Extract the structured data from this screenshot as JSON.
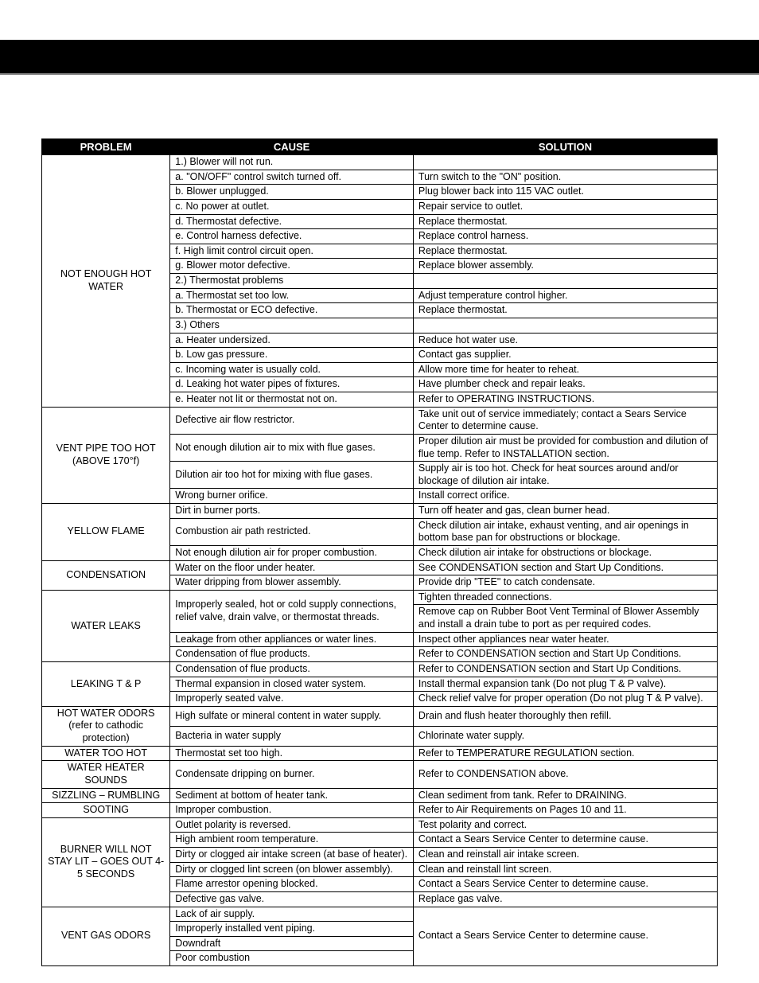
{
  "headers": {
    "problem": "PROBLEM",
    "cause": "CAUSE",
    "solution": "SOLUTION"
  },
  "p1": "NOT ENOUGH HOT WATER",
  "p1_c1": "1.) Blower will not run.",
  "p1_s1": "",
  "p1_c2": "a. \"ON/OFF\" control switch turned off.",
  "p1_s2": "Turn switch to the \"ON\" position.",
  "p1_c3": "b. Blower unplugged.",
  "p1_s3": "Plug blower back into 115 VAC outlet.",
  "p1_c4": "c. No power at outlet.",
  "p1_s4": "Repair service to outlet.",
  "p1_c5": "d. Thermostat defective.",
  "p1_s5": "Replace thermostat.",
  "p1_c6": "e. Control harness defective.",
  "p1_s6": "Replace control harness.",
  "p1_c7": "f. High limit control circuit open.",
  "p1_s7": "Replace thermostat.",
  "p1_c8": "g. Blower motor defective.",
  "p1_s8": "Replace blower assembly.",
  "p1_c9": "2.) Thermostat problems",
  "p1_s9": "",
  "p1_c10": "a. Thermostat set too low.",
  "p1_s10": "Adjust temperature control higher.",
  "p1_c11": "b. Thermostat or ECO defective.",
  "p1_s11": "Replace thermostat.",
  "p1_c12": "3.) Others",
  "p1_s12": "",
  "p1_c13": "a. Heater undersized.",
  "p1_s13": "Reduce hot water use.",
  "p1_c14": "b. Low gas pressure.",
  "p1_s14": "Contact gas supplier.",
  "p1_c15": "c. Incoming water is usually cold.",
  "p1_s15": "Allow more time for heater to reheat.",
  "p1_c16": "d. Leaking hot water pipes of fixtures.",
  "p1_s16": "Have plumber check and repair leaks.",
  "p1_c17": "e. Heater not lit or thermostat not on.",
  "p1_s17": "Refer to OPERATING INSTRUCTIONS.",
  "p2": "VENT PIPE TOO HOT (ABOVE 170°f)",
  "p2_c1": "Defective air flow restrictor.",
  "p2_s1": "Take unit out of service immediately; contact a Sears Service Center to determine cause.",
  "p2_c2": "Not enough dilution air to mix with flue gases.",
  "p2_s2": "Proper dilution air must be provided for combustion and dilution of flue temp. Refer to INSTALLATION section.",
  "p2_c3": "Dilution air too hot for mixing with flue gases.",
  "p2_s3": "Supply air is too hot. Check for heat sources around and/or blockage of dilution air intake.",
  "p2_c4": "Wrong burner orifice.",
  "p2_s4": "Install correct orifice.",
  "p3": "YELLOW FLAME",
  "p3_c1": "Dirt in burner ports.",
  "p3_s1": "Turn off heater and gas, clean burner head.",
  "p3_c2": "Combustion air path restricted.",
  "p3_s2": "Check dilution air intake, exhaust venting, and air openings in bottom base pan for obstructions or blockage.",
  "p3_c3": "Not enough dilution air for proper combustion.",
  "p3_s3": "Check dilution air intake for obstructions or blockage.",
  "p4": "CONDENSATION",
  "p4_c1": "Water on the floor under heater.",
  "p4_s1": "See CONDENSATION section and Start Up Conditions.",
  "p4_c2": "Water dripping from blower assembly.",
  "p4_s2": "Provide drip \"TEE\" to catch condensate.",
  "p5": "WATER LEAKS",
  "p5_c1": "Improperly sealed, hot or cold supply connections, relief valve, drain valve, or thermostat threads.",
  "p5_s1a": "Tighten threaded connections.",
  "p5_s1b": "Remove cap on Rubber Boot Vent Terminal of Blower Assembly and install a drain tube to port as per required codes.",
  "p5_c2": "Leakage from other appliances or water lines.",
  "p5_s2": "Inspect other appliances near water heater.",
  "p5_c3": "Condensation of flue products.",
  "p5_s3": "Refer to CONDENSATION section and Start Up Conditions.",
  "p6": "LEAKING T & P",
  "p6_c1": "Condensation of flue products.",
  "p6_s1": "Refer to CONDENSATION section and Start Up Conditions.",
  "p6_c2": "Thermal expansion in closed water system.",
  "p6_s2": "Install thermal expansion tank (Do not plug T & P valve).",
  "p6_c3": "Improperly seated valve.",
  "p6_s3": "Check relief valve for proper operation (Do not plug T & P valve).",
  "p7": "HOT WATER ODORS (refer to cathodic protection)",
  "p7_c1": "High sulfate or mineral content in water supply.",
  "p7_s1": "Drain and flush heater thoroughly then refill.",
  "p7_c2": "Bacteria in water supply",
  "p7_s2": "Chlorinate water supply.",
  "p8": "WATER TOO HOT",
  "p8_c1": "Thermostat set too high.",
  "p8_s1": "Refer to TEMPERATURE REGULATION section.",
  "p9": "WATER HEATER SOUNDS",
  "p9_c1": "Condensate dripping on burner.",
  "p9_s1": "Refer to CONDENSATION above.",
  "p10": "SIZZLING – RUMBLING",
  "p10_c1": "Sediment at bottom of heater tank.",
  "p10_s1": "Clean sediment from tank. Refer to DRAINING.",
  "p11": "SOOTING",
  "p11_c1": "Improper combustion.",
  "p11_s1": "Refer to Air Requirements on Pages 10 and 11.",
  "p12": "BURNER WILL NOT STAY LIT – GOES OUT 4-5 SECONDS",
  "p12_c1": "Outlet polarity is reversed.",
  "p12_s1": "Test polarity and correct.",
  "p12_c2": "High ambient room temperature.",
  "p12_s2": "Contact a Sears Service Center to determine cause.",
  "p12_c3": "Dirty or clogged air intake screen (at base of heater).",
  "p12_s3": "Clean and reinstall air intake screen.",
  "p12_c4": "Dirty or clogged lint screen (on blower assembly).",
  "p12_s4": "Clean and reinstall lint screen.",
  "p12_c5": "Flame arrestor opening blocked.",
  "p12_s5": "Contact a Sears Service Center to determine cause.",
  "p12_c6": "Defective gas valve.",
  "p12_s6": "Replace gas valve.",
  "p13": "VENT GAS ODORS",
  "p13_c1": "Lack of air supply.",
  "p13_c2": "Improperly installed vent piping.",
  "p13_c3": "Downdraft",
  "p13_c4": "Poor combustion",
  "p13_s": "Contact a Sears Service Center to determine cause."
}
